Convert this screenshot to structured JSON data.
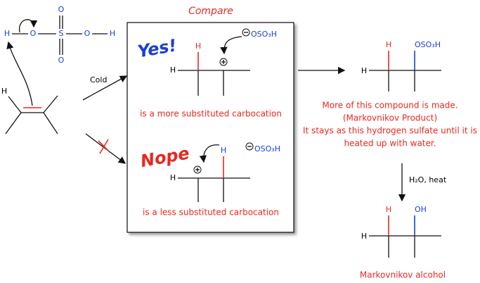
{
  "title": "Compare",
  "reagent": {
    "atoms": [
      "H",
      "O",
      "S",
      "O",
      "H",
      "O",
      "O"
    ]
  },
  "alkene": {
    "atoms": [
      "H"
    ]
  },
  "condition_cold": "Cold",
  "yes": {
    "label": "Yes!",
    "atoms": [
      "H",
      "H",
      "OSO₃H"
    ],
    "caption": "is a more substituted carbocation"
  },
  "nope": {
    "label": "Nope",
    "atoms": [
      "H",
      "H",
      "OSO₃H"
    ],
    "caption": "is a less substituted carbocation"
  },
  "product": {
    "atoms": [
      "H",
      "H",
      "OSO₃H"
    ],
    "notes": [
      "More of this compound is made.",
      "(Markovnikov Product)",
      "It stays as this hydrogen sulfate until it is",
      "heated up with water."
    ]
  },
  "condition_water": "H₂O, heat",
  "alcohol": {
    "atoms": [
      "H",
      "H",
      "OH"
    ],
    "caption": "Markovnikov alcohol"
  }
}
